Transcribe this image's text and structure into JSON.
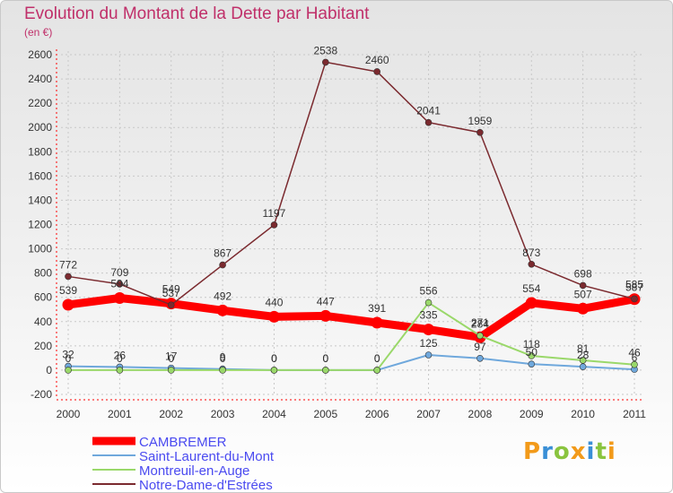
{
  "title": "Evolution du Montant de la Dette par Habitant",
  "subtitle": "(en €)",
  "logo_text": "Proxiti",
  "colors": {
    "title": "#c0306a",
    "cambremer": "#ff0000",
    "saint_laurent": "#6fa8dc",
    "montreuil": "#9ad86a",
    "notre_dame": "#7b2a2f"
  },
  "chart_data": {
    "type": "line",
    "title": "Evolution du Montant de la Dette par Habitant",
    "subtitle": "(en €)",
    "x": [
      "2000",
      "2001",
      "2002",
      "2003",
      "2004",
      "2005",
      "2006",
      "2007",
      "2008",
      "2009",
      "2010",
      "2011"
    ],
    "ylim": [
      -200,
      2600
    ],
    "yticks": [
      -200,
      0,
      200,
      400,
      600,
      800,
      1000,
      1200,
      1400,
      1600,
      1800,
      2000,
      2200,
      2400,
      2600
    ],
    "grid": true,
    "legend_placement": "bottom-left",
    "series": [
      {
        "name": "CAMBREMER",
        "color": "#ff0000",
        "width": 9,
        "values": [
          539,
          594,
          549,
          492,
          440,
          447,
          391,
          335,
          271,
          554,
          507,
          585
        ],
        "labels": [
          "539",
          "594",
          "549",
          "492",
          "440",
          "447",
          "391",
          "335",
          "271",
          "554",
          "507",
          "585"
        ]
      },
      {
        "name": "Saint-Laurent-du-Mont",
        "color": "#6fa8dc",
        "width": 2,
        "values": [
          32,
          26,
          17,
          9,
          0,
          0,
          0,
          125,
          97,
          50,
          28,
          6
        ],
        "labels": [
          "32",
          "26",
          "17",
          "9",
          "0",
          "0",
          "0",
          "125",
          "97",
          "50",
          "28",
          "6"
        ]
      },
      {
        "name": "Montreuil-en-Auge",
        "color": "#9ad86a",
        "width": 2,
        "values": [
          0,
          0,
          0,
          0,
          0,
          0,
          0,
          556,
          284,
          118,
          81,
          46
        ],
        "labels": [
          "0",
          "0",
          "0",
          "0",
          "0",
          "0",
          "0",
          "556",
          "284",
          "118",
          "81",
          "46"
        ]
      },
      {
        "name": "Notre-Dame-d'Estrées",
        "color": "#7b2a2f",
        "width": 1.5,
        "values": [
          772,
          709,
          537,
          867,
          1197,
          2538,
          2460,
          2041,
          1959,
          873,
          698,
          587
        ],
        "labels": [
          "772",
          "709",
          "537",
          "867",
          "1197",
          "2538",
          "2460",
          "2041",
          "1959",
          "873",
          "698",
          "587"
        ]
      }
    ]
  }
}
